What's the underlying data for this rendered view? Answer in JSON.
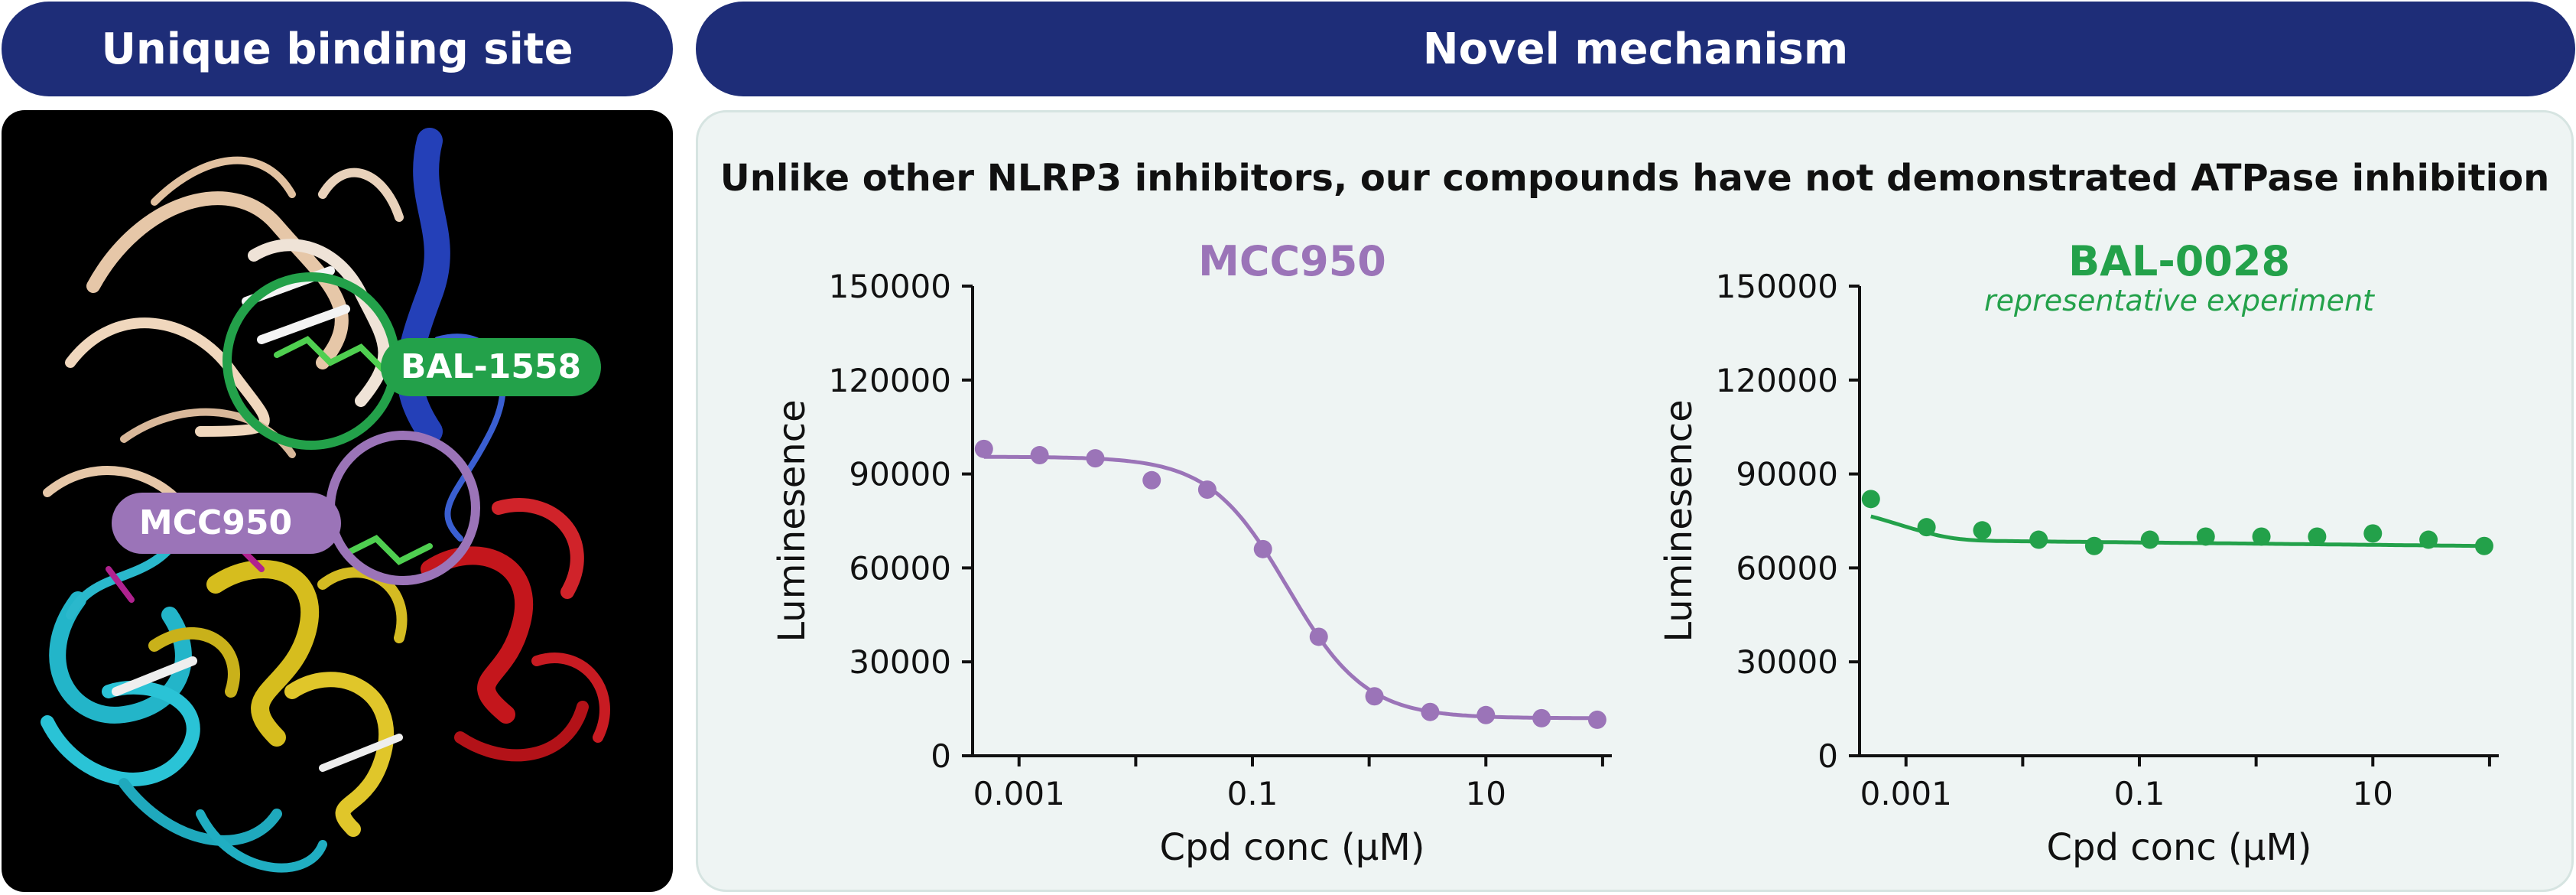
{
  "headers": {
    "left": "Unique binding site",
    "right": "Novel mechanism"
  },
  "protein_labels": {
    "green": "BAL-1558",
    "purple": "MCC950"
  },
  "caption": "Unlike other NLRP3 inhibitors, our compounds have not demonstrated ATPase inhibition",
  "colors": {
    "header_bg": "#1e2d78",
    "purple": "#9b74b8",
    "green": "#23a14a",
    "panel_bg": "#eef4f3"
  },
  "chart_data": [
    {
      "type": "scatter",
      "title": "MCC950",
      "subtitle": "",
      "xlabel": "Cpd conc (μM)",
      "ylabel": "Luminesence",
      "x_scale": "log",
      "xlim": [
        0.0004,
        120
      ],
      "ylim": [
        0,
        150000
      ],
      "x_ticks": [
        0.001,
        0.1,
        10
      ],
      "x_tick_labels": [
        "0.001",
        "0.1",
        "10"
      ],
      "y_ticks": [
        0,
        30000,
        60000,
        90000,
        120000,
        150000
      ],
      "y_tick_labels": [
        "0",
        "30000",
        "60000",
        "90000",
        "120000",
        "150000"
      ],
      "color": "#9b74b8",
      "series": [
        {
          "x": [
            0.0005,
            0.0015,
            0.0045,
            0.0137,
            0.041,
            0.123,
            0.37,
            1.11,
            3.33,
            10,
            30,
            90
          ],
          "y": [
            98000,
            96000,
            95000,
            88000,
            85000,
            66000,
            38000,
            19000,
            14000,
            13000,
            12000,
            11500
          ]
        }
      ]
    },
    {
      "type": "scatter",
      "title": "BAL-0028",
      "subtitle": "representative experiment",
      "xlabel": "Cpd conc (μM)",
      "ylabel": "Luminesence",
      "x_scale": "log",
      "xlim": [
        0.0004,
        120
      ],
      "ylim": [
        0,
        150000
      ],
      "x_ticks": [
        0.001,
        0.1,
        10
      ],
      "x_tick_labels": [
        "0.001",
        "0.1",
        "10"
      ],
      "y_ticks": [
        0,
        30000,
        60000,
        90000,
        120000,
        150000
      ],
      "y_tick_labels": [
        "0",
        "30000",
        "60000",
        "90000",
        "120000",
        "150000"
      ],
      "color": "#23a14a",
      "series": [
        {
          "x": [
            0.0005,
            0.0015,
            0.0045,
            0.0137,
            0.041,
            0.123,
            0.37,
            1.11,
            3.33,
            10,
            30,
            90
          ],
          "y": [
            82000,
            73000,
            72000,
            69000,
            67000,
            69000,
            70000,
            70000,
            70000,
            71000,
            69000,
            67000
          ]
        }
      ]
    }
  ]
}
